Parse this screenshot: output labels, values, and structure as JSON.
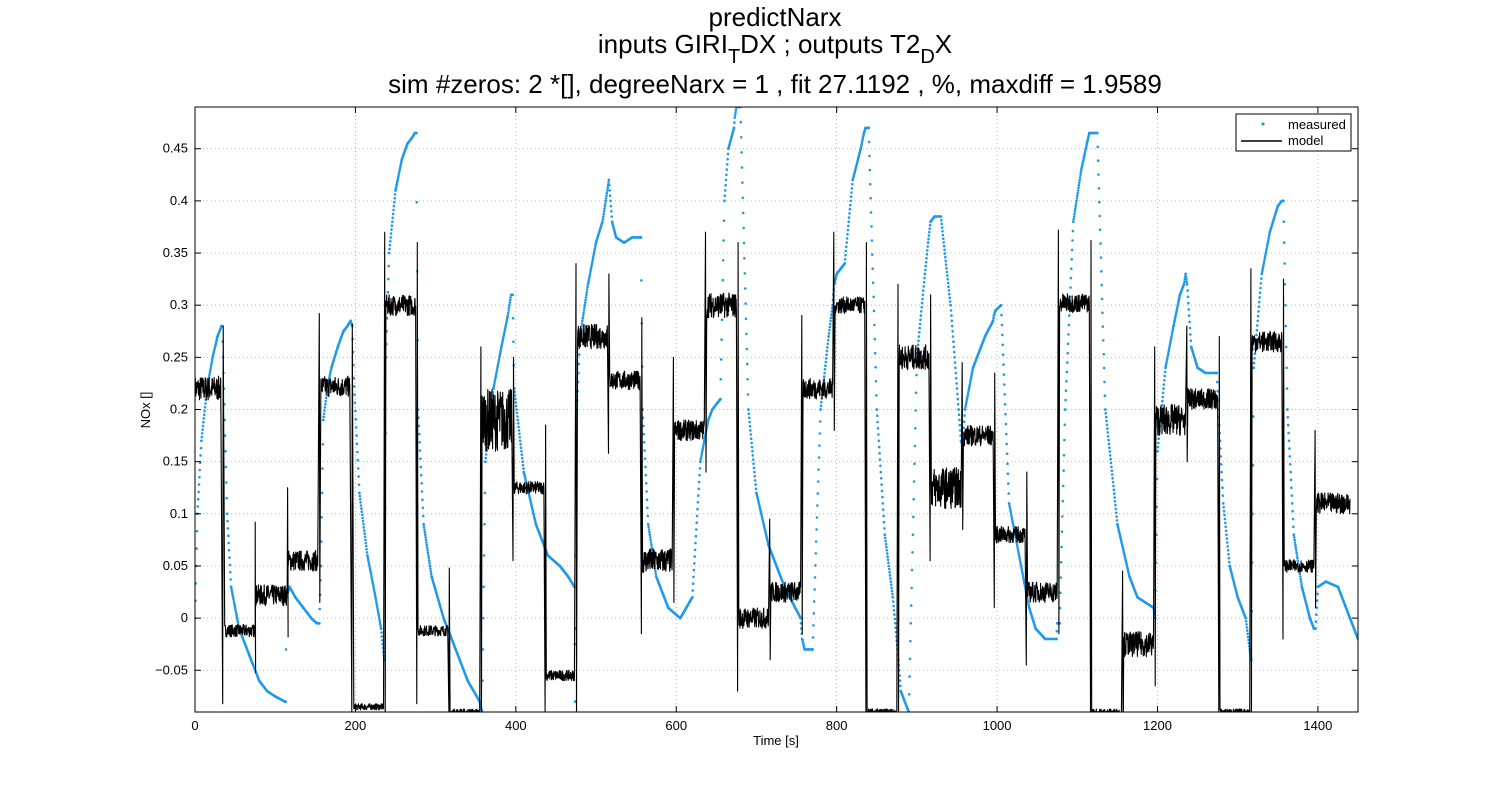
{
  "title": {
    "line1": "predictNarx",
    "line2_a": "inputs GIRI",
    "line2_sub1": "T",
    "line2_b": "DX ; outputs T2",
    "line2_sub2": "D",
    "line2_c": "X",
    "line3": "sim #zeros:  2 *[], degreeNarx =  1 , fit  27.1192 , %, maxdiff =  1.9589"
  },
  "colors": {
    "measured": "#1f9ae8",
    "model": "#000000",
    "grid": "#aaaaaa"
  },
  "chart_data": {
    "type": "line",
    "xlabel": "Time [s]",
    "ylabel": "NOx  []",
    "xlim": [
      0,
      1450
    ],
    "ylim": [
      -0.09,
      0.49
    ],
    "xticks": [
      0,
      200,
      400,
      600,
      800,
      1000,
      1200,
      1400
    ],
    "yticks": [
      -0.05,
      0,
      0.05,
      0.1,
      0.15,
      0.2,
      0.25,
      0.3,
      0.35,
      0.4,
      0.45
    ],
    "ytick_labels": [
      "−0.05",
      "0",
      "0.05",
      "0.1",
      "0.15",
      "0.2",
      "0.25",
      "0.3",
      "0.35",
      "0.4",
      "0.45"
    ],
    "grid": true,
    "legend_position": "top-right",
    "series": [
      {
        "name": "measured",
        "style": "dots",
        "x": [
          0,
          3,
          8,
          15,
          22,
          28,
          33,
          34,
          36,
          40,
          45,
          55,
          70,
          80,
          90,
          100,
          112,
          113,
          114,
          118,
          125,
          135,
          145,
          152,
          155,
          157,
          160,
          165,
          170,
          178,
          185,
          190,
          194,
          196,
          198,
          205,
          215,
          225,
          232,
          236,
          238,
          242,
          250,
          258,
          265,
          270,
          274,
          276,
          278,
          285,
          295,
          310,
          325,
          340,
          355,
          358,
          362,
          372,
          382,
          390,
          394,
          396,
          398,
          410,
          425,
          440,
          455,
          465,
          473,
          474,
          476,
          480,
          490,
          500,
          508,
          512,
          516,
          520,
          525,
          535,
          545,
          552,
          555,
          556,
          558,
          565,
          575,
          590,
          605,
          620,
          630,
          635,
          640,
          645,
          655,
          660,
          665,
          672,
          673,
          675,
          680,
          690,
          700,
          715,
          735,
          755,
          757,
          760,
          770,
          780,
          790,
          795,
          797,
          800,
          810,
          820,
          830,
          834,
          836,
          840,
          850,
          860,
          870,
          876,
          880,
          890,
          900,
          910,
          914,
          917,
          922,
          930,
          942,
          952,
          955,
          957,
          960,
          970,
          985,
          995,
          996,
          998,
          1005,
          1015,
          1030,
          1040,
          1048,
          1060,
          1074,
          1075,
          1078,
          1085,
          1095,
          1105,
          1112,
          1115,
          1118,
          1125,
          1135,
          1150,
          1165,
          1175,
          1195,
          1197,
          1200,
          1210,
          1220,
          1228,
          1233,
          1235,
          1237,
          1242,
          1250,
          1260,
          1272,
          1274,
          1276,
          1282,
          1290,
          1300,
          1310,
          1315,
          1317,
          1320,
          1330,
          1340,
          1350,
          1355,
          1357,
          1362,
          1370,
          1380,
          1390,
          1395,
          1397,
          1400,
          1410,
          1425,
          1440,
          1450
        ],
        "y": [
          0.0,
          0.1,
          0.17,
          0.22,
          0.25,
          0.27,
          0.28,
          0.28,
          0.22,
          0.1,
          0.03,
          -0.01,
          -0.04,
          -0.06,
          -0.07,
          -0.075,
          -0.08,
          -0.08,
          0.02,
          0.03,
          0.02,
          0.01,
          0.0,
          -0.005,
          -0.005,
          0.05,
          0.19,
          0.22,
          0.24,
          0.26,
          0.275,
          0.28,
          0.285,
          0.28,
          0.23,
          0.12,
          0.06,
          0.02,
          -0.01,
          -0.04,
          0.25,
          0.35,
          0.41,
          0.44,
          0.455,
          0.46,
          0.465,
          0.465,
          0.2,
          0.09,
          0.04,
          0.0,
          -0.03,
          -0.06,
          -0.08,
          -0.09,
          0.15,
          0.22,
          0.26,
          0.29,
          0.31,
          0.31,
          0.22,
          0.14,
          0.09,
          0.06,
          0.05,
          0.04,
          0.03,
          -0.08,
          0.2,
          0.27,
          0.32,
          0.36,
          0.38,
          0.4,
          0.42,
          0.38,
          0.365,
          0.36,
          0.365,
          0.365,
          0.365,
          0.365,
          0.2,
          0.09,
          0.04,
          0.01,
          0.0,
          0.02,
          0.15,
          0.17,
          0.19,
          0.2,
          0.21,
          0.4,
          0.45,
          0.47,
          0.48,
          0.49,
          0.49,
          0.2,
          0.12,
          0.07,
          0.03,
          0.0,
          -0.02,
          -0.03,
          -0.03,
          0.2,
          0.27,
          0.3,
          0.32,
          0.33,
          0.34,
          0.42,
          0.45,
          0.465,
          0.47,
          0.47,
          0.2,
          0.08,
          0.02,
          -0.03,
          -0.07,
          -0.09,
          0.25,
          0.33,
          0.36,
          0.38,
          0.385,
          0.385,
          0.3,
          0.2,
          0.17,
          0.165,
          0.2,
          0.24,
          0.27,
          0.285,
          0.29,
          0.295,
          0.3,
          0.11,
          0.05,
          0.01,
          -0.01,
          -0.02,
          -0.02,
          -0.005,
          -0.005,
          0.2,
          0.38,
          0.43,
          0.455,
          0.465,
          0.465,
          0.465,
          0.2,
          0.09,
          0.04,
          0.02,
          0.01,
          0.0,
          0.16,
          0.24,
          0.28,
          0.31,
          0.32,
          0.33,
          0.32,
          0.26,
          0.24,
          0.235,
          0.235,
          0.235,
          0.2,
          0.11,
          0.05,
          0.02,
          0.0,
          -0.03,
          -0.04,
          0.24,
          0.33,
          0.37,
          0.395,
          0.4,
          0.4,
          0.2,
          0.08,
          0.03,
          0.0,
          -0.01,
          -0.01,
          0.03,
          0.035,
          0.03,
          0.0,
          -0.02
        ]
      },
      {
        "name": "model",
        "style": "line",
        "segments": [
          {
            "x0": 0,
            "x1": 32,
            "level": 0.22,
            "noise": 0.012
          },
          {
            "x0": 37,
            "x1": 75,
            "level": -0.012,
            "noise": 0.006
          },
          {
            "x0": 75,
            "x1": 115,
            "level": 0.022,
            "noise": 0.01
          },
          {
            "x0": 116,
            "x1": 153,
            "level": 0.055,
            "noise": 0.01
          },
          {
            "x0": 157,
            "x1": 193,
            "level": 0.222,
            "noise": 0.01
          },
          {
            "x0": 198,
            "x1": 235,
            "level": -0.085,
            "noise": 0.003
          },
          {
            "x0": 238,
            "x1": 275,
            "level": 0.3,
            "noise": 0.01
          },
          {
            "x0": 278,
            "x1": 315,
            "level": -0.012,
            "noise": 0.005
          },
          {
            "x0": 318,
            "x1": 355,
            "level": -0.09,
            "noise": 0.003
          },
          {
            "x0": 358,
            "x1": 395,
            "level": 0.19,
            "noise": 0.03
          },
          {
            "x0": 398,
            "x1": 435,
            "level": 0.125,
            "noise": 0.006
          },
          {
            "x0": 438,
            "x1": 473,
            "level": -0.055,
            "noise": 0.005
          },
          {
            "x0": 477,
            "x1": 514,
            "level": 0.27,
            "noise": 0.012
          },
          {
            "x0": 517,
            "x1": 555,
            "level": 0.228,
            "noise": 0.009
          },
          {
            "x0": 558,
            "x1": 595,
            "level": 0.055,
            "noise": 0.012
          },
          {
            "x0": 598,
            "x1": 635,
            "level": 0.18,
            "noise": 0.01
          },
          {
            "x0": 638,
            "x1": 675,
            "level": 0.3,
            "noise": 0.012
          },
          {
            "x0": 678,
            "x1": 715,
            "level": 0.0,
            "noise": 0.01
          },
          {
            "x0": 718,
            "x1": 755,
            "level": 0.025,
            "noise": 0.01
          },
          {
            "x0": 758,
            "x1": 795,
            "level": 0.22,
            "noise": 0.01
          },
          {
            "x0": 798,
            "x1": 835,
            "level": 0.3,
            "noise": 0.008
          },
          {
            "x0": 838,
            "x1": 875,
            "level": -0.09,
            "noise": 0.003
          },
          {
            "x0": 878,
            "x1": 915,
            "level": 0.25,
            "noise": 0.012
          },
          {
            "x0": 918,
            "x1": 955,
            "level": 0.125,
            "noise": 0.02
          },
          {
            "x0": 958,
            "x1": 995,
            "level": 0.175,
            "noise": 0.01
          },
          {
            "x0": 998,
            "x1": 1035,
            "level": 0.08,
            "noise": 0.008
          },
          {
            "x0": 1038,
            "x1": 1075,
            "level": 0.025,
            "noise": 0.01
          },
          {
            "x0": 1078,
            "x1": 1115,
            "level": 0.302,
            "noise": 0.009
          },
          {
            "x0": 1118,
            "x1": 1155,
            "level": -0.09,
            "noise": 0.003
          },
          {
            "x0": 1158,
            "x1": 1195,
            "level": -0.025,
            "noise": 0.012
          },
          {
            "x0": 1198,
            "x1": 1235,
            "level": 0.19,
            "noise": 0.015
          },
          {
            "x0": 1238,
            "x1": 1275,
            "level": 0.21,
            "noise": 0.01
          },
          {
            "x0": 1278,
            "x1": 1315,
            "level": -0.09,
            "noise": 0.003
          },
          {
            "x0": 1318,
            "x1": 1355,
            "level": 0.265,
            "noise": 0.01
          },
          {
            "x0": 1358,
            "x1": 1395,
            "level": 0.05,
            "noise": 0.006
          },
          {
            "x0": 1398,
            "x1": 1440,
            "level": 0.11,
            "noise": 0.01
          }
        ]
      }
    ]
  }
}
